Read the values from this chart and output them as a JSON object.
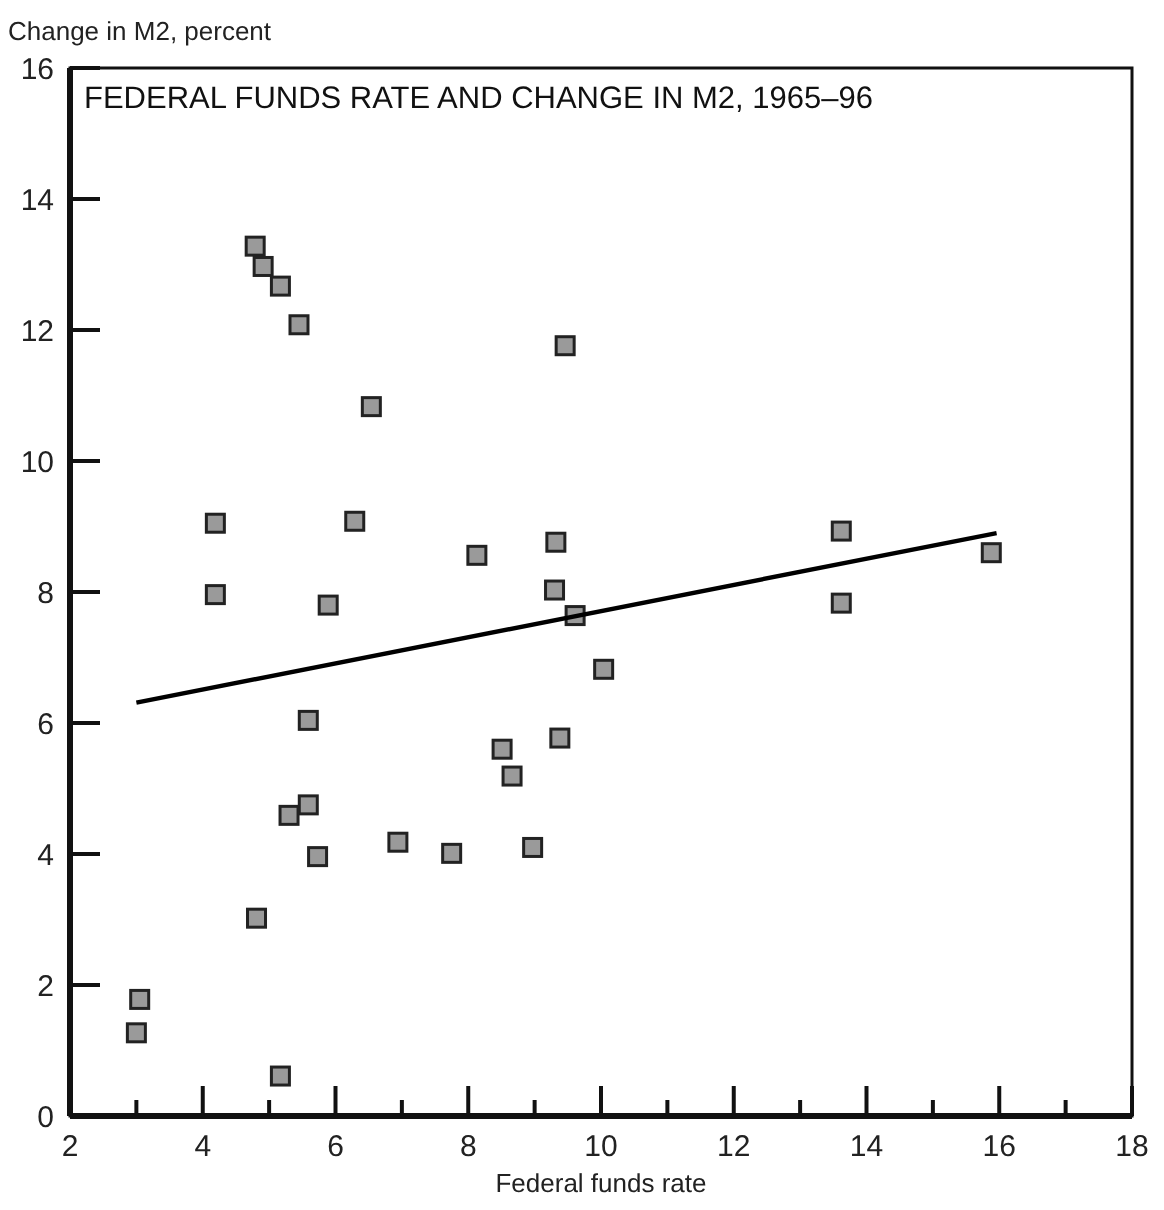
{
  "chart_data": {
    "type": "scatter",
    "title": "FEDERAL FUNDS RATE AND CHANGE IN M2, 1965–96",
    "xlabel": "Federal funds rate",
    "ylabel": "Change in M2, percent",
    "xlim": [
      2,
      18
    ],
    "ylim": [
      0,
      16
    ],
    "xticks": [
      2,
      {
        "value": 3,
        "label": null
      },
      4,
      {
        "value": 5,
        "label": null
      },
      6,
      {
        "value": 7,
        "label": null
      },
      8,
      {
        "value": 9,
        "label": null
      },
      10,
      {
        "value": 11,
        "label": null
      },
      12,
      {
        "value": 13,
        "label": null
      },
      14,
      {
        "value": 15,
        "label": null
      },
      16,
      {
        "value": 17,
        "label": null
      },
      18
    ],
    "yticks": [
      0,
      2,
      4,
      6,
      8,
      10,
      12,
      14,
      16
    ],
    "grid": false,
    "marker": "square",
    "series": [
      {
        "color": "#9a9a9a",
        "x": [
          4.79,
          4.91,
          5.17,
          5.45,
          6.54,
          9.46,
          4.19,
          6.29,
          8.13,
          9.32,
          4.19,
          5.89,
          9.3,
          9.61,
          5.59,
          8.51,
          9.38,
          8.66,
          5.59,
          5.3,
          5.73,
          6.94,
          7.75,
          8.97,
          4.81,
          3.05,
          3.0,
          5.17,
          13.62,
          13.62,
          15.88,
          10.04
        ],
        "values": [
          13.28,
          12.97,
          12.67,
          12.08,
          10.83,
          11.76,
          9.05,
          9.08,
          8.56,
          8.76,
          7.96,
          7.8,
          8.03,
          7.64,
          6.04,
          5.6,
          5.77,
          5.19,
          4.75,
          4.59,
          3.96,
          4.18,
          4.01,
          4.1,
          3.02,
          1.78,
          1.27,
          0.61,
          8.93,
          7.83,
          8.6,
          6.82
        ]
      },
      {
        "type": "line",
        "color": "#000000",
        "x": [
          3.0,
          15.96
        ],
        "values": [
          6.31,
          8.9
        ],
        "marker": "none",
        "line_style": "solid"
      }
    ]
  }
}
